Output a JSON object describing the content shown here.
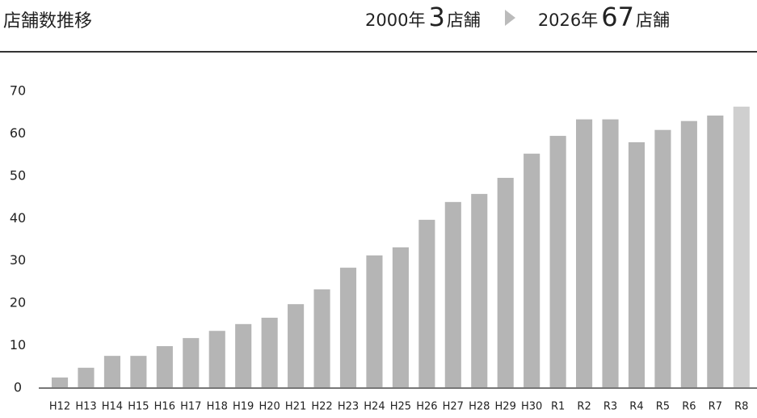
{
  "chart_data": {
    "type": "bar",
    "header": {
      "title": "店舗数推移",
      "from_year": "2000年",
      "from_count": "3",
      "from_unit": "店舗",
      "to_year": "2026年",
      "to_count": "67",
      "to_unit": "店舗"
    },
    "categories": [
      "H12",
      "H13",
      "H14",
      "H15",
      "H16",
      "H17",
      "H18",
      "H19",
      "H20",
      "H21",
      "H22",
      "H23",
      "H24",
      "H25",
      "H26",
      "H27",
      "H28",
      "H29",
      "H30",
      "R1",
      "R2",
      "R3",
      "R4",
      "R5",
      "R6",
      "R7",
      "R8"
    ],
    "values": [
      2.5,
      4.8,
      7.6,
      7.6,
      9.9,
      11.8,
      13.5,
      15.1,
      16.6,
      19.8,
      23.3,
      28.4,
      31.3,
      33.2,
      39.7,
      43.9,
      45.8,
      49.6,
      55.3,
      59.5,
      63.4,
      63.4,
      58,
      60.9,
      63,
      64.3,
      66.4
    ],
    "colors": [
      "#b5b5b5",
      "#b5b5b5",
      "#b5b5b5",
      "#b5b5b5",
      "#b5b5b5",
      "#b5b5b5",
      "#b5b5b5",
      "#b5b5b5",
      "#b5b5b5",
      "#b5b5b5",
      "#b5b5b5",
      "#b5b5b5",
      "#b5b5b5",
      "#b5b5b5",
      "#b5b5b5",
      "#b5b5b5",
      "#b5b5b5",
      "#b5b5b5",
      "#b5b5b5",
      "#b5b5b5",
      "#b5b5b5",
      "#b5b5b5",
      "#b5b5b5",
      "#b5b5b5",
      "#b5b5b5",
      "#b5b5b5",
      "#cfcfcf"
    ],
    "ylim": [
      0,
      70
    ],
    "yticks": [
      0,
      10,
      20,
      30,
      40,
      50,
      60,
      70
    ],
    "grid": false
  }
}
